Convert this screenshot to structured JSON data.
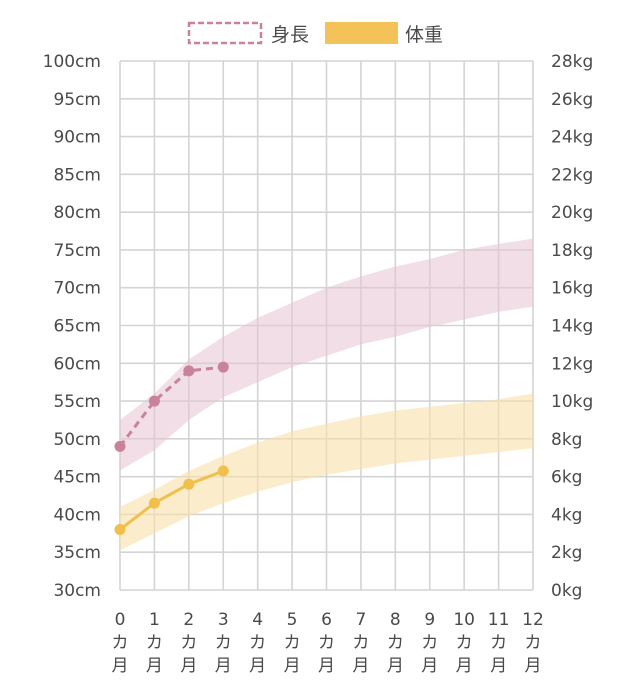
{
  "chart_data": {
    "type": "line",
    "legend": {
      "placement": "top-center",
      "items": [
        {
          "label": "身長",
          "style": "dashed-outline",
          "color": "#c98299"
        },
        {
          "label": "体重",
          "style": "solid-fill",
          "color": "#f3c35a"
        }
      ]
    },
    "x": [
      0,
      1,
      2,
      3,
      4,
      5,
      6,
      7,
      8,
      9,
      10,
      11,
      12
    ],
    "x_tick_labels": [
      {
        "num": "0",
        "ka": "カ",
        "tsuki": "月"
      },
      {
        "num": "1",
        "ka": "カ",
        "tsuki": "月"
      },
      {
        "num": "2",
        "ka": "カ",
        "tsuki": "月"
      },
      {
        "num": "3",
        "ka": "カ",
        "tsuki": "月"
      },
      {
        "num": "4",
        "ka": "カ",
        "tsuki": "月"
      },
      {
        "num": "5",
        "ka": "カ",
        "tsuki": "月"
      },
      {
        "num": "6",
        "ka": "カ",
        "tsuki": "月"
      },
      {
        "num": "7",
        "ka": "カ",
        "tsuki": "月"
      },
      {
        "num": "8",
        "ka": "カ",
        "tsuki": "月"
      },
      {
        "num": "9",
        "ka": "カ",
        "tsuki": "月"
      },
      {
        "num": "10",
        "ka": "カ",
        "tsuki": "月"
      },
      {
        "num": "11",
        "ka": "カ",
        "tsuki": "月"
      },
      {
        "num": "12",
        "ka": "カ",
        "tsuki": "月"
      }
    ],
    "xlim": [
      0,
      12
    ],
    "y_left": {
      "lim": [
        30,
        100
      ],
      "ticks": [
        30,
        35,
        40,
        45,
        50,
        55,
        60,
        65,
        70,
        75,
        80,
        85,
        90,
        95,
        100
      ],
      "tick_labels": [
        "30cm",
        "35cm",
        "40cm",
        "45cm",
        "50cm",
        "55cm",
        "60cm",
        "65cm",
        "70cm",
        "75cm",
        "80cm",
        "85cm",
        "90cm",
        "95cm",
        "100cm"
      ]
    },
    "y_right": {
      "lim": [
        0,
        28
      ],
      "ticks": [
        0,
        2,
        4,
        6,
        8,
        10,
        12,
        14,
        16,
        18,
        20,
        22,
        24,
        26,
        28
      ],
      "tick_labels": [
        "0kg",
        "2kg",
        "4kg",
        "6kg",
        "8kg",
        "10kg",
        "12kg",
        "14kg",
        "16kg",
        "18kg",
        "20kg",
        "22kg",
        "24kg",
        "26kg",
        "28kg"
      ]
    },
    "grid": true,
    "bands": [
      {
        "name": "身長",
        "axis": "left",
        "color": "#e6c3d1",
        "lower": [
          {
            "x": 0,
            "y": 45.8
          },
          {
            "x": 1,
            "y": 48.5
          },
          {
            "x": 2,
            "y": 52.5
          },
          {
            "x": 3,
            "y": 55.5
          },
          {
            "x": 4,
            "y": 57.5
          },
          {
            "x": 5,
            "y": 59.5
          },
          {
            "x": 6,
            "y": 61.0
          },
          {
            "x": 7,
            "y": 62.5
          },
          {
            "x": 8,
            "y": 63.5
          },
          {
            "x": 9,
            "y": 64.8
          },
          {
            "x": 10,
            "y": 65.8
          },
          {
            "x": 11,
            "y": 66.8
          },
          {
            "x": 12,
            "y": 67.5
          }
        ],
        "upper": [
          {
            "x": 0,
            "y": 52.5
          },
          {
            "x": 1,
            "y": 56.0
          },
          {
            "x": 2,
            "y": 60.5
          },
          {
            "x": 3,
            "y": 63.5
          },
          {
            "x": 4,
            "y": 66.0
          },
          {
            "x": 5,
            "y": 68.0
          },
          {
            "x": 6,
            "y": 70.0
          },
          {
            "x": 7,
            "y": 71.5
          },
          {
            "x": 8,
            "y": 72.8
          },
          {
            "x": 9,
            "y": 73.8
          },
          {
            "x": 10,
            "y": 75.0
          },
          {
            "x": 11,
            "y": 75.8
          },
          {
            "x": 12,
            "y": 76.5
          }
        ]
      },
      {
        "name": "体重",
        "axis": "right",
        "color": "#f8e1aa",
        "lower": [
          {
            "x": 0,
            "y": 2.1
          },
          {
            "x": 1,
            "y": 3.0
          },
          {
            "x": 2,
            "y": 3.9
          },
          {
            "x": 3,
            "y": 4.6
          },
          {
            "x": 4,
            "y": 5.2
          },
          {
            "x": 5,
            "y": 5.7
          },
          {
            "x": 6,
            "y": 6.1
          },
          {
            "x": 7,
            "y": 6.4
          },
          {
            "x": 8,
            "y": 6.7
          },
          {
            "x": 9,
            "y": 6.9
          },
          {
            "x": 10,
            "y": 7.1
          },
          {
            "x": 11,
            "y": 7.3
          },
          {
            "x": 12,
            "y": 7.5
          }
        ],
        "upper": [
          {
            "x": 0,
            "y": 4.4
          },
          {
            "x": 1,
            "y": 5.3
          },
          {
            "x": 2,
            "y": 6.3
          },
          {
            "x": 3,
            "y": 7.1
          },
          {
            "x": 4,
            "y": 7.8
          },
          {
            "x": 5,
            "y": 8.4
          },
          {
            "x": 6,
            "y": 8.8
          },
          {
            "x": 7,
            "y": 9.2
          },
          {
            "x": 8,
            "y": 9.5
          },
          {
            "x": 9,
            "y": 9.7
          },
          {
            "x": 10,
            "y": 9.9
          },
          {
            "x": 11,
            "y": 10.1
          },
          {
            "x": 12,
            "y": 10.4
          }
        ]
      }
    ],
    "series": [
      {
        "name": "身長",
        "axis": "left",
        "style": "dashed",
        "color": "#c98299",
        "points": [
          {
            "x": 0,
            "y": 49.0
          },
          {
            "x": 1,
            "y": 55.0
          },
          {
            "x": 2,
            "y": 59.0
          },
          {
            "x": 3,
            "y": 59.5
          }
        ]
      },
      {
        "name": "体重",
        "axis": "right",
        "style": "solid",
        "color": "#f0bf4c",
        "points": [
          {
            "x": 0,
            "y": 3.2
          },
          {
            "x": 1,
            "y": 4.6
          },
          {
            "x": 2,
            "y": 5.6
          },
          {
            "x": 3,
            "y": 6.3
          }
        ]
      }
    ],
    "colors": {
      "grid": "#d4d4d4",
      "text": "#4a4a4a"
    }
  }
}
